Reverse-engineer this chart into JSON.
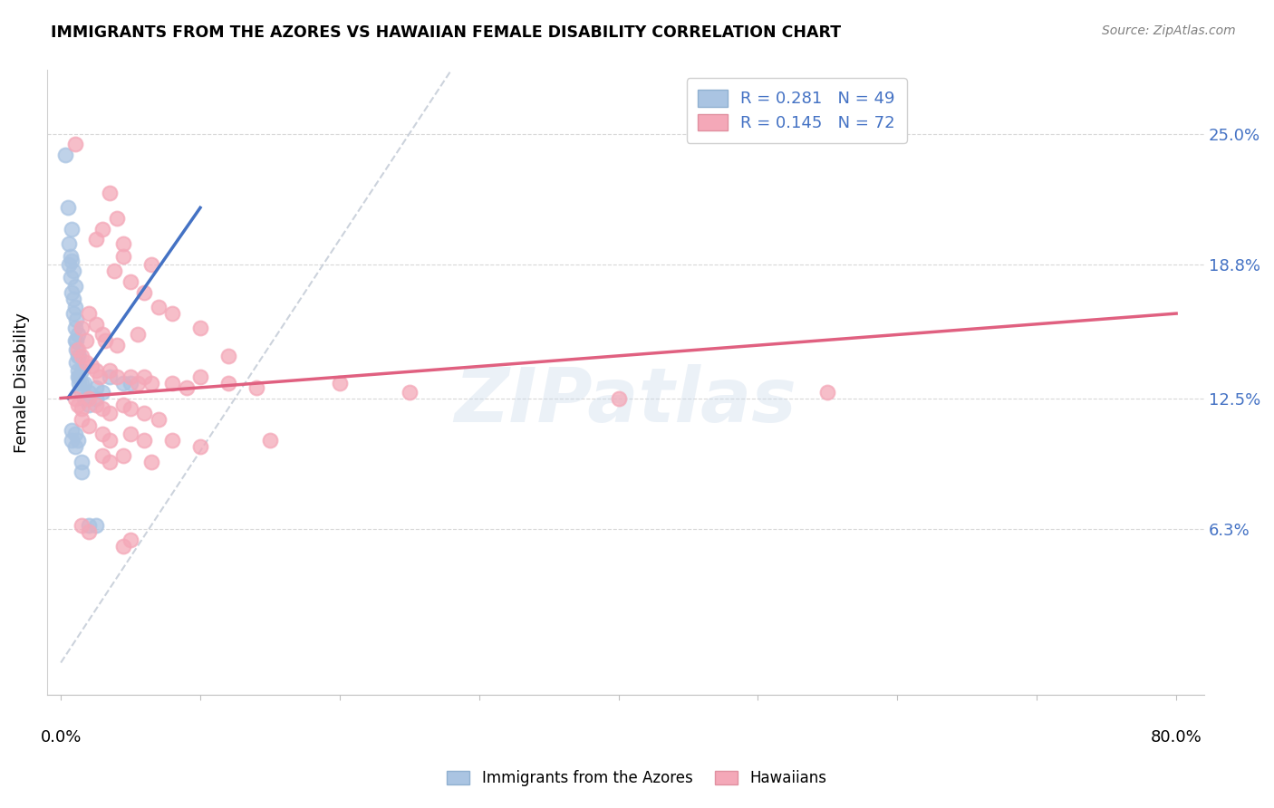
{
  "title": "IMMIGRANTS FROM THE AZORES VS HAWAIIAN FEMALE DISABILITY CORRELATION CHART",
  "source": "Source: ZipAtlas.com",
  "ylabel": "Female Disability",
  "yticks_labels": [
    "25.0%",
    "18.8%",
    "12.5%",
    "6.3%"
  ],
  "ytick_vals": [
    25.0,
    18.8,
    12.5,
    6.3
  ],
  "legend_blue_r": "R = 0.281",
  "legend_blue_n": "N = 49",
  "legend_pink_r": "R = 0.145",
  "legend_pink_n": "N = 72",
  "blue_color": "#aac4e2",
  "pink_color": "#f4a8b8",
  "blue_line_color": "#4472C4",
  "pink_line_color": "#e06080",
  "diagonal_color": "#c0c8d4",
  "watermark": "ZIPatlas",
  "blue_scatter": [
    [
      0.3,
      24.0
    ],
    [
      0.5,
      21.5
    ],
    [
      0.6,
      19.8
    ],
    [
      0.6,
      18.8
    ],
    [
      0.7,
      19.2
    ],
    [
      0.7,
      18.2
    ],
    [
      0.8,
      20.5
    ],
    [
      0.8,
      19.0
    ],
    [
      0.8,
      17.5
    ],
    [
      0.9,
      18.5
    ],
    [
      0.9,
      17.2
    ],
    [
      0.9,
      16.5
    ],
    [
      1.0,
      17.8
    ],
    [
      1.0,
      16.8
    ],
    [
      1.0,
      15.8
    ],
    [
      1.0,
      15.2
    ],
    [
      1.1,
      16.2
    ],
    [
      1.1,
      15.2
    ],
    [
      1.1,
      14.8
    ],
    [
      1.1,
      14.2
    ],
    [
      1.2,
      15.5
    ],
    [
      1.2,
      14.5
    ],
    [
      1.2,
      13.8
    ],
    [
      1.2,
      13.5
    ],
    [
      1.3,
      14.5
    ],
    [
      1.3,
      13.5
    ],
    [
      1.3,
      13.2
    ],
    [
      1.5,
      13.8
    ],
    [
      1.5,
      13.2
    ],
    [
      1.5,
      12.8
    ],
    [
      1.7,
      13.2
    ],
    [
      1.7,
      12.5
    ],
    [
      2.0,
      12.8
    ],
    [
      2.0,
      12.2
    ],
    [
      2.5,
      13.0
    ],
    [
      2.5,
      12.5
    ],
    [
      3.0,
      12.8
    ],
    [
      3.5,
      13.5
    ],
    [
      4.5,
      13.2
    ],
    [
      5.0,
      13.2
    ],
    [
      0.8,
      11.0
    ],
    [
      0.8,
      10.5
    ],
    [
      1.0,
      10.8
    ],
    [
      1.0,
      10.2
    ],
    [
      1.2,
      10.5
    ],
    [
      1.5,
      9.5
    ],
    [
      1.5,
      9.0
    ],
    [
      2.0,
      6.5
    ],
    [
      2.5,
      6.5
    ]
  ],
  "pink_scatter": [
    [
      1.0,
      24.5
    ],
    [
      3.5,
      22.2
    ],
    [
      4.0,
      21.0
    ],
    [
      4.5,
      19.8
    ],
    [
      4.5,
      19.2
    ],
    [
      3.0,
      20.5
    ],
    [
      2.5,
      20.0
    ],
    [
      3.8,
      18.5
    ],
    [
      5.0,
      18.0
    ],
    [
      6.5,
      18.8
    ],
    [
      6.0,
      17.5
    ],
    [
      7.0,
      16.8
    ],
    [
      2.0,
      16.5
    ],
    [
      2.5,
      16.0
    ],
    [
      3.0,
      15.5
    ],
    [
      3.2,
      15.2
    ],
    [
      1.5,
      15.8
    ],
    [
      1.8,
      15.2
    ],
    [
      4.0,
      15.0
    ],
    [
      5.5,
      15.5
    ],
    [
      8.0,
      16.5
    ],
    [
      10.0,
      15.8
    ],
    [
      12.0,
      14.5
    ],
    [
      1.2,
      14.8
    ],
    [
      1.5,
      14.5
    ],
    [
      1.8,
      14.2
    ],
    [
      2.2,
      14.0
    ],
    [
      2.5,
      13.8
    ],
    [
      2.8,
      13.5
    ],
    [
      3.5,
      13.8
    ],
    [
      4.0,
      13.5
    ],
    [
      5.0,
      13.5
    ],
    [
      5.5,
      13.2
    ],
    [
      6.0,
      13.5
    ],
    [
      6.5,
      13.2
    ],
    [
      8.0,
      13.2
    ],
    [
      9.0,
      13.0
    ],
    [
      10.0,
      13.5
    ],
    [
      12.0,
      13.2
    ],
    [
      14.0,
      13.0
    ],
    [
      20.0,
      13.2
    ],
    [
      25.0,
      12.8
    ],
    [
      1.0,
      12.5
    ],
    [
      1.2,
      12.2
    ],
    [
      1.5,
      12.0
    ],
    [
      2.0,
      12.5
    ],
    [
      2.5,
      12.2
    ],
    [
      3.0,
      12.0
    ],
    [
      3.5,
      11.8
    ],
    [
      4.5,
      12.2
    ],
    [
      5.0,
      12.0
    ],
    [
      6.0,
      11.8
    ],
    [
      7.0,
      11.5
    ],
    [
      1.5,
      11.5
    ],
    [
      2.0,
      11.2
    ],
    [
      3.0,
      10.8
    ],
    [
      3.5,
      10.5
    ],
    [
      5.0,
      10.8
    ],
    [
      6.0,
      10.5
    ],
    [
      8.0,
      10.5
    ],
    [
      10.0,
      10.2
    ],
    [
      15.0,
      10.5
    ],
    [
      40.0,
      12.5
    ],
    [
      55.0,
      12.8
    ],
    [
      3.0,
      9.8
    ],
    [
      3.5,
      9.5
    ],
    [
      4.5,
      9.8
    ],
    [
      6.5,
      9.5
    ],
    [
      1.5,
      6.5
    ],
    [
      2.0,
      6.2
    ],
    [
      4.5,
      5.5
    ],
    [
      5.0,
      5.8
    ]
  ],
  "blue_line_x": [
    0.5,
    10.0
  ],
  "blue_line_y": [
    12.5,
    21.5
  ],
  "pink_line_x": [
    0.0,
    80.0
  ],
  "pink_line_y": [
    12.5,
    16.5
  ],
  "diag_line_x": [
    0.0,
    28.0
  ],
  "diag_line_y": [
    0.0,
    28.0
  ],
  "xlim": [
    -1.0,
    82.0
  ],
  "ylim": [
    -1.5,
    28.0
  ],
  "xtick_positions": [
    0,
    10,
    20,
    30,
    40,
    50,
    60,
    70,
    80
  ]
}
